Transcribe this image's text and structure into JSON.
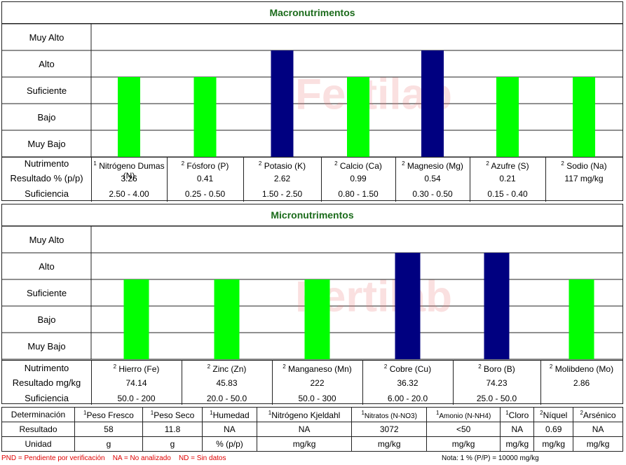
{
  "macro": {
    "title": "Macronutrimentos",
    "levels": [
      "Muy Alto",
      "Alto",
      "Suficiente",
      "Bajo",
      "Muy Bajo"
    ],
    "row_labels": {
      "nutriente": "Nutrimento",
      "resultado": "Resultado % (p/p)",
      "suficiencia": "Suficiencia"
    },
    "items": [
      {
        "sup": "1",
        "name": "Nitrógeno Dumas (N)",
        "result": "3.26",
        "range": "2.50 - 4.00"
      },
      {
        "sup": "2",
        "name": "Fósforo (P)",
        "result": "0.41",
        "range": "0.25 - 0.50"
      },
      {
        "sup": "2",
        "name": "Potasio (K)",
        "result": "2.62",
        "range": "1.50 - 2.50"
      },
      {
        "sup": "2",
        "name": "Calcio (Ca)",
        "result": "0.99",
        "range": "0.80 - 1.50"
      },
      {
        "sup": "2",
        "name": "Magnesio (Mg)",
        "result": "0.54",
        "range": "0.30 - 0.50"
      },
      {
        "sup": "2",
        "name": "Azufre (S)",
        "result": "0.21",
        "range": "0.15 - 0.40"
      },
      {
        "sup": "2",
        "name": "Sodio (Na)",
        "result": "117 mg/kg",
        "range": ""
      }
    ]
  },
  "micro": {
    "title": "Micronutrimentos",
    "levels": [
      "Muy Alto",
      "Alto",
      "Suficiente",
      "Bajo",
      "Muy Bajo"
    ],
    "row_labels": {
      "nutriente": "Nutrimento",
      "resultado": "Resultado mg/kg",
      "suficiencia": "Suficiencia"
    },
    "items": [
      {
        "sup": "2",
        "name": "Hierro (Fe)",
        "result": "74.14",
        "range": "50.0 - 200"
      },
      {
        "sup": "2",
        "name": "Zinc (Zn)",
        "result": "45.83",
        "range": "20.0 - 50.0"
      },
      {
        "sup": "2",
        "name": "Manganeso (Mn)",
        "result": "222",
        "range": "50.0 - 300"
      },
      {
        "sup": "2",
        "name": "Cobre (Cu)",
        "result": "36.32",
        "range": "6.00 - 20.0"
      },
      {
        "sup": "2",
        "name": "Boro (B)",
        "result": "74.23",
        "range": "25.0 - 50.0"
      },
      {
        "sup": "2",
        "name": "Molibdeno (Mo)",
        "result": "2.86",
        "range": ""
      }
    ]
  },
  "chart_data": [
    {
      "type": "bar",
      "title": "Macronutrimentos",
      "categories": [
        "Nitrógeno Dumas (N)",
        "Fósforo (P)",
        "Potasio (K)",
        "Calcio (Ca)",
        "Magnesio (Mg)",
        "Azufre (S)",
        "Sodio (Na)"
      ],
      "levels": [
        "Muy Bajo",
        "Bajo",
        "Suficiente",
        "Alto",
        "Muy Alto"
      ],
      "values": [
        3,
        3,
        4,
        3,
        4,
        3,
        3
      ],
      "level_names": [
        "Suficiente",
        "Suficiente",
        "Alto",
        "Suficiente",
        "Alto",
        "Suficiente",
        "Suficiente"
      ],
      "colors": {
        "Suficiente": "#00ff00",
        "Alto": "#000080"
      }
    },
    {
      "type": "bar",
      "title": "Micronutrimentos",
      "categories": [
        "Hierro (Fe)",
        "Zinc (Zn)",
        "Manganeso (Mn)",
        "Cobre (Cu)",
        "Boro (B)",
        "Molibdeno (Mo)"
      ],
      "levels": [
        "Muy Bajo",
        "Bajo",
        "Suficiente",
        "Alto",
        "Muy Alto"
      ],
      "values": [
        3,
        3,
        3,
        4,
        4,
        3
      ],
      "level_names": [
        "Suficiente",
        "Suficiente",
        "Suficiente",
        "Alto",
        "Alto",
        "Suficiente"
      ],
      "colors": {
        "Suficiente": "#00ff00",
        "Alto": "#000080"
      }
    }
  ],
  "bottom": {
    "headers": [
      {
        "sup": "",
        "text": "Determinación"
      },
      {
        "sup": "1",
        "text": "Peso Fresco"
      },
      {
        "sup": "1",
        "text": "Peso Seco"
      },
      {
        "sup": "1",
        "text": "Humedad"
      },
      {
        "sup": "1",
        "text": "Nitrógeno Kjeldahl"
      },
      {
        "sup": "1",
        "text": "Nitratos (N-NO3)"
      },
      {
        "sup": "1",
        "text": "Amonio (N-NH4)"
      },
      {
        "sup": "1",
        "text": "Cloro"
      },
      {
        "sup": "2",
        "text": "Níquel"
      },
      {
        "sup": "2",
        "text": "Arsénico"
      }
    ],
    "results": [
      "Resultado",
      "58",
      "11.8",
      "NA",
      "NA",
      "3072",
      "<50",
      "NA",
      "0.69",
      "NA"
    ],
    "units": [
      "Unidad",
      "g",
      "g",
      "% (p/p)",
      "mg/kg",
      "mg/kg",
      "mg/kg",
      "mg/kg",
      "mg/kg",
      "mg/kg"
    ]
  },
  "footer": {
    "pnd": "PND = Pendiente por verificación",
    "na": "NA = No analizado",
    "nd": "ND = Sin datos",
    "note": "Nota: 1 % (P/P) = 10000 mg/kg"
  }
}
